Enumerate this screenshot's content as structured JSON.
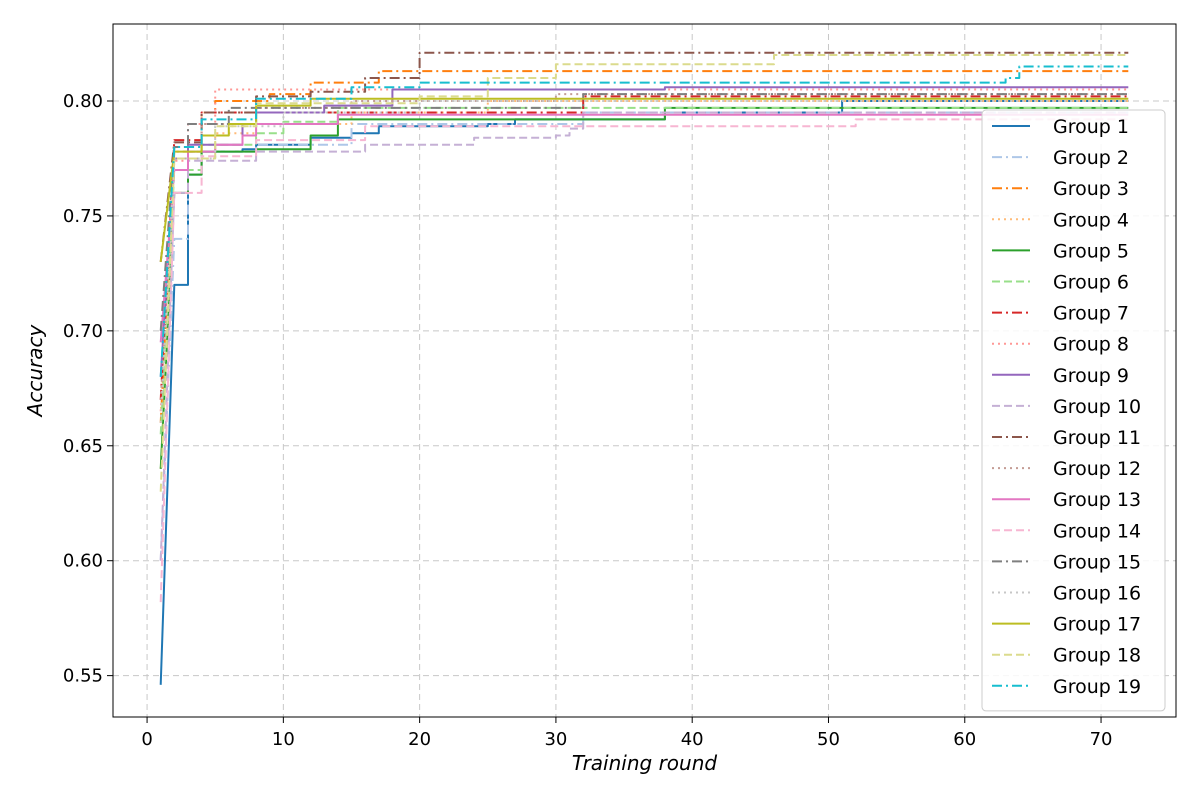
{
  "chart_data": {
    "type": "line",
    "title": "",
    "xlabel": "Training round",
    "ylabel": "Accuracy",
    "xlim": [
      -2.5,
      75.5
    ],
    "ylim": [
      0.532,
      0.8335
    ],
    "xticks": [
      0,
      10,
      20,
      30,
      40,
      50,
      60,
      70
    ],
    "yticks": [
      0.55,
      0.6,
      0.65,
      0.7,
      0.75,
      0.8
    ],
    "ytick_labels": [
      "0.55",
      "0.60",
      "0.65",
      "0.70",
      "0.75",
      "0.80"
    ],
    "grid": true,
    "legend_position": "right",
    "series": [
      {
        "name": "Group 1",
        "color": "#1f77b4",
        "dash": "solid",
        "points": [
          [
            1,
            0.546
          ],
          [
            2,
            0.72
          ],
          [
            3,
            0.768
          ],
          [
            4,
            0.778
          ],
          [
            7,
            0.779
          ],
          [
            8,
            0.781
          ],
          [
            12,
            0.784
          ],
          [
            15,
            0.786
          ],
          [
            17,
            0.789
          ],
          [
            25,
            0.79
          ],
          [
            27,
            0.792
          ],
          [
            38,
            0.795
          ],
          [
            50,
            0.795
          ],
          [
            51,
            0.8
          ],
          [
            72,
            0.8
          ]
        ]
      },
      {
        "name": "Group 2",
        "color": "#aec7e8",
        "dash": "dashdot",
        "points": [
          [
            1,
            0.6
          ],
          [
            2,
            0.74
          ],
          [
            3,
            0.778
          ],
          [
            8,
            0.781
          ],
          [
            15,
            0.79
          ],
          [
            32,
            0.795
          ],
          [
            72,
            0.795
          ]
        ]
      },
      {
        "name": "Group 3",
        "color": "#ff7f0e",
        "dash": "dashdot",
        "points": [
          [
            1,
            0.66
          ],
          [
            2,
            0.778
          ],
          [
            4,
            0.795
          ],
          [
            5,
            0.8
          ],
          [
            9,
            0.803
          ],
          [
            12,
            0.808
          ],
          [
            17,
            0.813
          ],
          [
            72,
            0.813
          ]
        ]
      },
      {
        "name": "Group 4",
        "color": "#ffbb78",
        "dash": "dotted",
        "points": [
          [
            1,
            0.64
          ],
          [
            2,
            0.76
          ],
          [
            3,
            0.778
          ],
          [
            5,
            0.786
          ],
          [
            8,
            0.79
          ],
          [
            15,
            0.795
          ],
          [
            25,
            0.8
          ],
          [
            72,
            0.8
          ]
        ]
      },
      {
        "name": "Group 5",
        "color": "#2ca02c",
        "dash": "solid",
        "points": [
          [
            1,
            0.64
          ],
          [
            2,
            0.76
          ],
          [
            3,
            0.768
          ],
          [
            4,
            0.778
          ],
          [
            8,
            0.779
          ],
          [
            12,
            0.785
          ],
          [
            14,
            0.792
          ],
          [
            38,
            0.797
          ],
          [
            72,
            0.797
          ]
        ]
      },
      {
        "name": "Group 6",
        "color": "#98df8a",
        "dash": "dashed",
        "points": [
          [
            1,
            0.655
          ],
          [
            2,
            0.77
          ],
          [
            4,
            0.781
          ],
          [
            8,
            0.786
          ],
          [
            10,
            0.791
          ],
          [
            14,
            0.797
          ],
          [
            72,
            0.797
          ]
        ]
      },
      {
        "name": "Group 7",
        "color": "#d62728",
        "dash": "dashdot",
        "points": [
          [
            1,
            0.67
          ],
          [
            2,
            0.783
          ],
          [
            4,
            0.795
          ],
          [
            15,
            0.795
          ],
          [
            32,
            0.802
          ],
          [
            72,
            0.802
          ]
        ]
      },
      {
        "name": "Group 8",
        "color": "#ff9896",
        "dash": "dotted",
        "points": [
          [
            1,
            0.665
          ],
          [
            2,
            0.774
          ],
          [
            3,
            0.79
          ],
          [
            5,
            0.805
          ],
          [
            18,
            0.805
          ],
          [
            72,
            0.805
          ]
        ]
      },
      {
        "name": "Group 9",
        "color": "#9467bd",
        "dash": "solid",
        "points": [
          [
            1,
            0.68
          ],
          [
            2,
            0.775
          ],
          [
            3,
            0.781
          ],
          [
            7,
            0.79
          ],
          [
            8,
            0.795
          ],
          [
            13,
            0.798
          ],
          [
            18,
            0.805
          ],
          [
            38,
            0.806
          ],
          [
            72,
            0.806
          ]
        ]
      },
      {
        "name": "Group 10",
        "color": "#c5b0d5",
        "dash": "dashed",
        "points": [
          [
            1,
            0.6
          ],
          [
            2,
            0.76
          ],
          [
            3,
            0.774
          ],
          [
            8,
            0.778
          ],
          [
            14,
            0.778
          ],
          [
            16,
            0.781
          ],
          [
            23,
            0.781
          ],
          [
            24,
            0.784
          ],
          [
            30,
            0.785
          ],
          [
            31,
            0.788
          ],
          [
            32,
            0.795
          ],
          [
            72,
            0.795
          ]
        ]
      },
      {
        "name": "Group 11",
        "color": "#8c564b",
        "dash": "dashdot",
        "points": [
          [
            1,
            0.73
          ],
          [
            2,
            0.782
          ],
          [
            4,
            0.795
          ],
          [
            8,
            0.802
          ],
          [
            12,
            0.804
          ],
          [
            16,
            0.81
          ],
          [
            20,
            0.821
          ],
          [
            72,
            0.821
          ]
        ]
      },
      {
        "name": "Group 12",
        "color": "#c49c94",
        "dash": "dotted",
        "points": [
          [
            1,
            0.67
          ],
          [
            2,
            0.775
          ],
          [
            4,
            0.79
          ],
          [
            8,
            0.797
          ],
          [
            15,
            0.8
          ],
          [
            30,
            0.803
          ],
          [
            72,
            0.803
          ]
        ]
      },
      {
        "name": "Group 13",
        "color": "#e377c2",
        "dash": "solid",
        "points": [
          [
            1,
            0.695
          ],
          [
            2,
            0.77
          ],
          [
            3,
            0.778
          ],
          [
            5,
            0.781
          ],
          [
            7,
            0.785
          ],
          [
            8,
            0.79
          ],
          [
            14,
            0.794
          ],
          [
            72,
            0.794
          ]
        ]
      },
      {
        "name": "Group 14",
        "color": "#f7b6d2",
        "dash": "dashed",
        "points": [
          [
            1,
            0.582
          ],
          [
            2,
            0.76
          ],
          [
            4,
            0.776
          ],
          [
            8,
            0.783
          ],
          [
            16,
            0.789
          ],
          [
            52,
            0.792
          ],
          [
            72,
            0.792
          ]
        ]
      },
      {
        "name": "Group 15",
        "color": "#7f7f7f",
        "dash": "dashdot",
        "points": [
          [
            1,
            0.7
          ],
          [
            2,
            0.78
          ],
          [
            3,
            0.79
          ],
          [
            6,
            0.797
          ],
          [
            32,
            0.803
          ],
          [
            72,
            0.803
          ]
        ]
      },
      {
        "name": "Group 16",
        "color": "#c7c7c7",
        "dash": "dotted",
        "points": [
          [
            1,
            0.66
          ],
          [
            2,
            0.775
          ],
          [
            5,
            0.789
          ],
          [
            10,
            0.795
          ],
          [
            20,
            0.8
          ],
          [
            72,
            0.8
          ]
        ]
      },
      {
        "name": "Group 17",
        "color": "#bcbd22",
        "dash": "solid",
        "points": [
          [
            1,
            0.73
          ],
          [
            2,
            0.778
          ],
          [
            4,
            0.785
          ],
          [
            6,
            0.79
          ],
          [
            8,
            0.798
          ],
          [
            12,
            0.801
          ],
          [
            72,
            0.801
          ]
        ]
      },
      {
        "name": "Group 18",
        "color": "#dbdb8d",
        "dash": "dashed",
        "points": [
          [
            1,
            0.63
          ],
          [
            2,
            0.775
          ],
          [
            5,
            0.789
          ],
          [
            8,
            0.799
          ],
          [
            20,
            0.802
          ],
          [
            25,
            0.81
          ],
          [
            30,
            0.816
          ],
          [
            46,
            0.82
          ],
          [
            72,
            0.82
          ]
        ]
      },
      {
        "name": "Group 19",
        "color": "#17becf",
        "dash": "dashdot",
        "points": [
          [
            1,
            0.68
          ],
          [
            2,
            0.78
          ],
          [
            4,
            0.792
          ],
          [
            8,
            0.801
          ],
          [
            15,
            0.806
          ],
          [
            20,
            0.808
          ],
          [
            63,
            0.81
          ],
          [
            64,
            0.815
          ],
          [
            72,
            0.815
          ]
        ]
      }
    ]
  }
}
